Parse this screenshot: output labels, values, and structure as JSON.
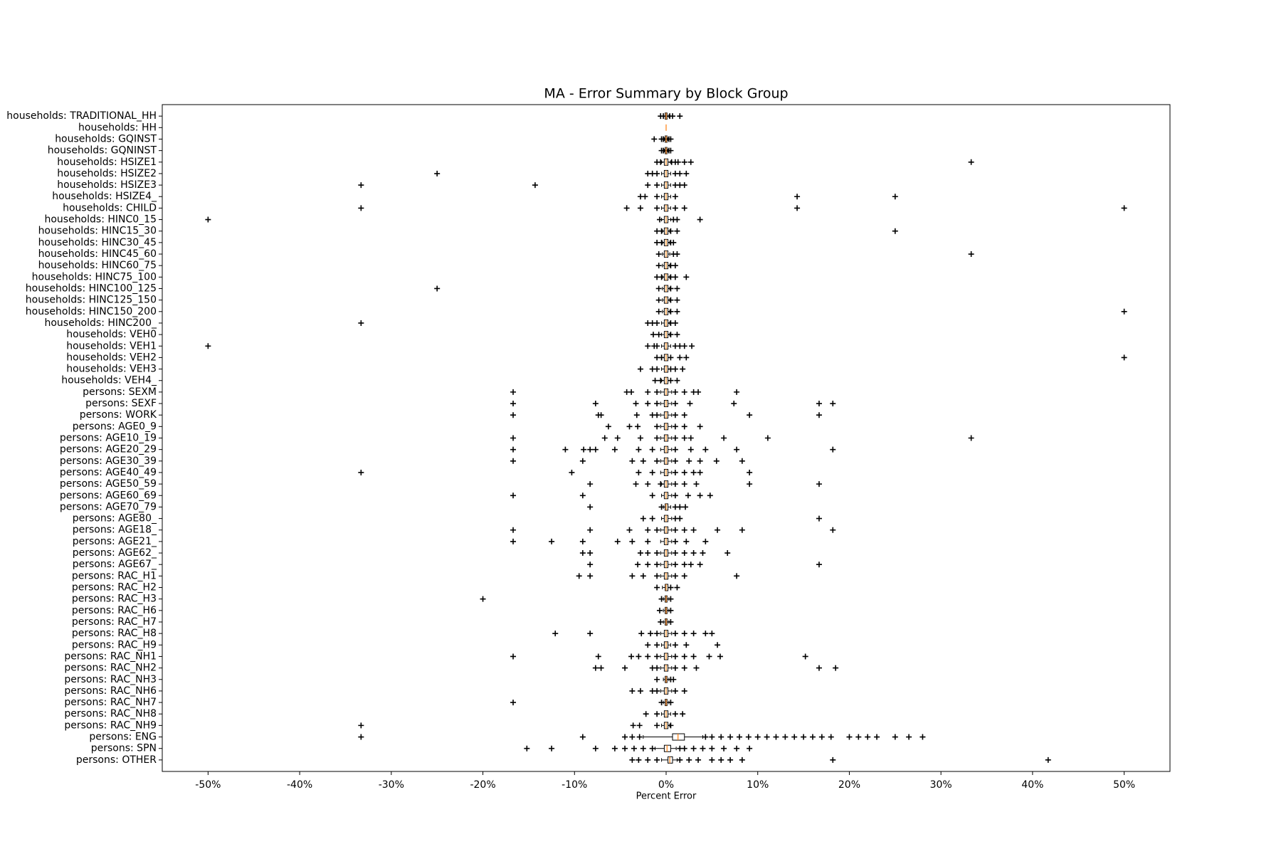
{
  "chart_data": {
    "type": "boxplot",
    "orientation": "horizontal",
    "title": "MA - Error Summary by Block Group",
    "x_label": "Percent Error",
    "xlim": [
      -55,
      55
    ],
    "xticks": [
      {
        "value": -50,
        "label": "-50%"
      },
      {
        "value": -40,
        "label": "-40%"
      },
      {
        "value": -30,
        "label": "-30%"
      },
      {
        "value": -20,
        "label": "-20%"
      },
      {
        "value": -10,
        "label": "-10%"
      },
      {
        "value": 0,
        "label": "0%"
      },
      {
        "value": 10,
        "label": "10%"
      },
      {
        "value": 20,
        "label": "20%"
      },
      {
        "value": 30,
        "label": "30%"
      },
      {
        "value": 40,
        "label": "40%"
      },
      {
        "value": 50,
        "label": "50%"
      }
    ],
    "box_color": "#000000",
    "median_color": "#ff7f0e",
    "grid": false,
    "categories": [
      "households: TRADITIONAL_HH",
      "households: HH",
      "households: GQINST",
      "households: GQNINST",
      "households: HSIZE1",
      "households: HSIZE2",
      "households: HSIZE3",
      "households: HSIZE4_",
      "households: CHILD",
      "households: HINC0_15",
      "households: HINC15_30",
      "households: HINC30_45",
      "households: HINC45_60",
      "households: HINC60_75",
      "households: HINC75_100",
      "households: HINC100_125",
      "households: HINC125_150",
      "households: HINC150_200",
      "households: HINC200_",
      "households: VEH0",
      "households: VEH1",
      "households: VEH2",
      "households: VEH3",
      "households: VEH4_",
      "persons: SEXM",
      "persons: SEXF",
      "persons: WORK",
      "persons: AGE0_9",
      "persons: AGE10_19",
      "persons: AGE20_29",
      "persons: AGE30_39",
      "persons: AGE40_49",
      "persons: AGE50_59",
      "persons: AGE60_69",
      "persons: AGE70_79",
      "persons: AGE80_",
      "persons: AGE18_",
      "persons: AGE21_",
      "persons: AGE62_",
      "persons: AGE67_",
      "persons: RAC_H1",
      "persons: RAC_H2",
      "persons: RAC_H3",
      "persons: RAC_H6",
      "persons: RAC_H7",
      "persons: RAC_H8",
      "persons: RAC_H9",
      "persons: RAC_NH1",
      "persons: RAC_NH2",
      "persons: RAC_NH3",
      "persons: RAC_NH6",
      "persons: RAC_NH7",
      "persons: RAC_NH8",
      "persons: RAC_NH9",
      "persons: ENG",
      "persons: SPN",
      "persons: OTHER"
    ],
    "boxes": [
      {
        "q1": -0.1,
        "median": 0,
        "q3": 0.1,
        "whislo": -0.3,
        "whishi": 0.3,
        "fliers": [
          -0.6,
          -0.3,
          0.4,
          0.7,
          1.5
        ]
      },
      {
        "q1": 0,
        "median": 0,
        "q3": 0,
        "whislo": 0,
        "whishi": 0,
        "fliers": []
      },
      {
        "q1": -0.1,
        "median": 0,
        "q3": 0.1,
        "whislo": -0.2,
        "whishi": 0.2,
        "fliers": [
          -1.3,
          -0.5,
          -0.3,
          0.3,
          0.5
        ]
      },
      {
        "q1": -0.1,
        "median": 0,
        "q3": 0.1,
        "whislo": -0.2,
        "whishi": 0.2,
        "fliers": [
          -0.5,
          -0.3,
          0.3,
          0.5
        ]
      },
      {
        "q1": -0.2,
        "median": 0,
        "q3": 0.2,
        "whislo": -0.5,
        "whishi": 0.5,
        "fliers": [
          -1,
          -0.6,
          0.6,
          1,
          1.3,
          2,
          2.7,
          33.3
        ]
      },
      {
        "q1": -0.2,
        "median": 0,
        "q3": 0.2,
        "whislo": -0.5,
        "whishi": 0.5,
        "fliers": [
          -25,
          -2,
          -1.5,
          -1,
          1,
          1.5,
          2.2
        ]
      },
      {
        "q1": -0.2,
        "median": 0,
        "q3": 0.2,
        "whislo": -0.5,
        "whishi": 0.5,
        "fliers": [
          -33.3,
          -14.3,
          -2,
          -1,
          1,
          1.5,
          2
        ]
      },
      {
        "q1": -0.2,
        "median": 0,
        "q3": 0.2,
        "whislo": -0.5,
        "whishi": 0.5,
        "fliers": [
          -2.8,
          -2.3,
          -1,
          1,
          14.3,
          25
        ]
      },
      {
        "q1": -0.2,
        "median": 0,
        "q3": 0.2,
        "whislo": -0.5,
        "whishi": 0.5,
        "fliers": [
          -33.3,
          -4.3,
          -2.8,
          -1,
          1,
          2,
          14.3,
          50
        ]
      },
      {
        "q1": -0.2,
        "median": 0,
        "q3": 0.2,
        "whislo": -0.5,
        "whishi": 0.5,
        "fliers": [
          -50,
          -0.7,
          0.8,
          1.2,
          3.7
        ]
      },
      {
        "q1": -0.2,
        "median": 0,
        "q3": 0.2,
        "whislo": -0.4,
        "whishi": 0.4,
        "fliers": [
          -1,
          -0.5,
          0.5,
          1.2,
          25
        ]
      },
      {
        "q1": -0.2,
        "median": 0,
        "q3": 0.2,
        "whislo": -0.4,
        "whishi": 0.4,
        "fliers": [
          -1,
          -0.5,
          0.5,
          0.8
        ]
      },
      {
        "q1": -0.2,
        "median": 0,
        "q3": 0.2,
        "whislo": -0.4,
        "whishi": 0.4,
        "fliers": [
          -0.8,
          0.8,
          1.2,
          33.3
        ]
      },
      {
        "q1": -0.2,
        "median": 0,
        "q3": 0.2,
        "whislo": -0.4,
        "whishi": 0.4,
        "fliers": [
          -0.8,
          0.5,
          1
        ]
      },
      {
        "q1": -0.2,
        "median": 0,
        "q3": 0.2,
        "whislo": -0.4,
        "whishi": 0.4,
        "fliers": [
          -1,
          -0.5,
          0.5,
          1,
          2.2
        ]
      },
      {
        "q1": -0.2,
        "median": 0,
        "q3": 0.2,
        "whislo": -0.4,
        "whishi": 0.4,
        "fliers": [
          -25,
          -0.8,
          0.5,
          1.2
        ]
      },
      {
        "q1": -0.2,
        "median": 0,
        "q3": 0.2,
        "whislo": -0.4,
        "whishi": 0.4,
        "fliers": [
          -0.8,
          0.5,
          1.2
        ]
      },
      {
        "q1": -0.2,
        "median": 0,
        "q3": 0.2,
        "whislo": -0.4,
        "whishi": 0.4,
        "fliers": [
          -0.8,
          0.5,
          1.2,
          50
        ]
      },
      {
        "q1": -0.2,
        "median": 0,
        "q3": 0.2,
        "whislo": -0.5,
        "whishi": 0.4,
        "fliers": [
          -33.3,
          -2,
          -1.5,
          -1,
          0.5,
          1
        ]
      },
      {
        "q1": -0.2,
        "median": 0,
        "q3": 0.2,
        "whislo": -0.5,
        "whishi": 0.4,
        "fliers": [
          -1.4,
          -0.8,
          0.5,
          1.2
        ]
      },
      {
        "q1": -0.2,
        "median": 0,
        "q3": 0.2,
        "whislo": -0.5,
        "whishi": 0.5,
        "fliers": [
          -50,
          -2,
          -1.3,
          -1,
          1,
          1.5,
          2,
          2.8
        ]
      },
      {
        "q1": -0.2,
        "median": 0,
        "q3": 0.2,
        "whislo": -0.5,
        "whishi": 0.5,
        "fliers": [
          -1,
          -0.5,
          0.5,
          1.5,
          2.2,
          50
        ]
      },
      {
        "q1": -0.2,
        "median": 0,
        "q3": 0.2,
        "whislo": -0.5,
        "whishi": 0.5,
        "fliers": [
          -2.8,
          -1.5,
          -1,
          0.5,
          1,
          1.8
        ]
      },
      {
        "q1": -0.2,
        "median": 0,
        "q3": 0.2,
        "whislo": -0.5,
        "whishi": 0.5,
        "fliers": [
          -1.2,
          -0.6,
          0.5,
          1.2
        ]
      },
      {
        "q1": -0.2,
        "median": 0,
        "q3": 0.2,
        "whislo": -0.6,
        "whishi": 0.6,
        "fliers": [
          -16.7,
          -4.3,
          -3.8,
          -2,
          -1,
          1,
          2,
          3,
          3.5,
          7.7
        ]
      },
      {
        "q1": -0.2,
        "median": 0,
        "q3": 0.2,
        "whislo": -0.6,
        "whishi": 0.6,
        "fliers": [
          -16.7,
          -7.7,
          -3.3,
          -2,
          -1,
          1,
          2.6,
          7.4,
          16.7,
          18.2
        ]
      },
      {
        "q1": -0.2,
        "median": 0,
        "q3": 0.2,
        "whislo": -0.6,
        "whishi": 0.6,
        "fliers": [
          -16.7,
          -7.4,
          -7.1,
          -3.2,
          -1.5,
          -1,
          1,
          2,
          9.1,
          16.7
        ]
      },
      {
        "q1": -0.2,
        "median": 0,
        "q3": 0.2,
        "whislo": -0.6,
        "whishi": 0.6,
        "fliers": [
          -6.3,
          -4,
          -3.1,
          -1,
          1,
          2,
          3.7
        ]
      },
      {
        "q1": -0.2,
        "median": 0,
        "q3": 0.2,
        "whislo": -0.6,
        "whishi": 0.6,
        "fliers": [
          -16.7,
          -6.7,
          -5.3,
          -2.8,
          -1,
          1,
          2,
          2.7,
          6.3,
          11.1,
          33.3
        ]
      },
      {
        "q1": -0.2,
        "median": 0,
        "q3": 0.2,
        "whislo": -0.6,
        "whishi": 0.6,
        "fliers": [
          -16.7,
          -11,
          -9,
          -8.3,
          -7.7,
          -5.6,
          -3,
          -1.5,
          1,
          2.7,
          4.3,
          7.7,
          18.2
        ]
      },
      {
        "q1": -0.2,
        "median": 0,
        "q3": 0.2,
        "whislo": -0.6,
        "whishi": 0.6,
        "fliers": [
          -16.7,
          -9.1,
          -3.7,
          -2.5,
          -1,
          1,
          2.5,
          3.7,
          5.5,
          8.3
        ]
      },
      {
        "q1": -0.2,
        "median": 0,
        "q3": 0.2,
        "whislo": -0.6,
        "whishi": 0.6,
        "fliers": [
          -33.3,
          -10.3,
          -3,
          -1.5,
          1,
          2,
          3,
          3.7,
          9.1
        ]
      },
      {
        "q1": -0.2,
        "median": 0,
        "q3": 0.2,
        "whislo": -0.5,
        "whishi": 0.6,
        "fliers": [
          -8.3,
          -3.3,
          -2,
          -0.6,
          1,
          2,
          3.3,
          9.1,
          16.7
        ]
      },
      {
        "q1": -0.2,
        "median": 0,
        "q3": 0.2,
        "whislo": -0.5,
        "whishi": 0.6,
        "fliers": [
          -16.7,
          -9.1,
          -1.5,
          1,
          2.4,
          3.7,
          4.8
        ]
      },
      {
        "q1": -0.1,
        "median": 0,
        "q3": 0.2,
        "whislo": -0.3,
        "whishi": 0.5,
        "fliers": [
          -8.3,
          -0.5,
          1,
          1.5,
          2.1
        ]
      },
      {
        "q1": -0.2,
        "median": 0,
        "q3": 0.2,
        "whislo": -0.5,
        "whishi": 0.6,
        "fliers": [
          -2.5,
          -1.5,
          1,
          1.5,
          16.7
        ]
      },
      {
        "q1": -0.2,
        "median": 0,
        "q3": 0.2,
        "whislo": -0.6,
        "whishi": 0.6,
        "fliers": [
          -16.7,
          -8.3,
          -4,
          -2,
          -1,
          1,
          2,
          3,
          5.6,
          8.3,
          18.2
        ]
      },
      {
        "q1": -0.2,
        "median": 0,
        "q3": 0.2,
        "whislo": -0.6,
        "whishi": 0.6,
        "fliers": [
          -16.7,
          -12.5,
          -9.1,
          -5.3,
          -3.7,
          -2,
          1,
          2.2,
          4.3
        ]
      },
      {
        "q1": -0.2,
        "median": 0,
        "q3": 0.2,
        "whislo": -0.6,
        "whishi": 0.6,
        "fliers": [
          -9.1,
          -8.3,
          -2.8,
          -2,
          -1,
          1,
          2,
          3,
          4,
          6.7
        ]
      },
      {
        "q1": -0.2,
        "median": 0,
        "q3": 0.2,
        "whislo": -0.6,
        "whishi": 0.6,
        "fliers": [
          -8.3,
          -3.1,
          -2,
          -1,
          1,
          2,
          2.7,
          3.7,
          16.7
        ]
      },
      {
        "q1": -0.2,
        "median": 0,
        "q3": 0.2,
        "whislo": -0.6,
        "whishi": 0.6,
        "fliers": [
          -9.5,
          -8.3,
          -3.7,
          -2.5,
          -1,
          1,
          2,
          7.7
        ]
      },
      {
        "q1": -0.1,
        "median": 0,
        "q3": 0.2,
        "whislo": -0.4,
        "whishi": 0.5,
        "fliers": [
          -1,
          0.5,
          1.2
        ]
      },
      {
        "q1": -0.1,
        "median": 0,
        "q3": 0.1,
        "whislo": -0.3,
        "whishi": 0.3,
        "fliers": [
          -20,
          -0.5,
          0.5
        ]
      },
      {
        "q1": -0.1,
        "median": 0,
        "q3": 0.1,
        "whislo": -0.3,
        "whishi": 0.3,
        "fliers": [
          -0.7,
          0.5
        ]
      },
      {
        "q1": -0.1,
        "median": 0,
        "q3": 0.1,
        "whislo": -0.3,
        "whishi": 0.3,
        "fliers": [
          -0.6,
          0.5
        ]
      },
      {
        "q1": -0.2,
        "median": 0,
        "q3": 0.2,
        "whislo": -0.6,
        "whishi": 0.6,
        "fliers": [
          -12.1,
          -8.3,
          -2.7,
          -1.7,
          -1,
          1,
          2,
          3,
          4.3,
          5
        ]
      },
      {
        "q1": -0.2,
        "median": 0,
        "q3": 0.2,
        "whislo": -0.5,
        "whishi": 0.5,
        "fliers": [
          -2,
          -1,
          1,
          2.2,
          5.6
        ]
      },
      {
        "q1": -0.2,
        "median": 0,
        "q3": 0.2,
        "whislo": -0.6,
        "whishi": 0.6,
        "fliers": [
          -16.7,
          -7.4,
          -3.8,
          -3,
          -2,
          -1,
          1,
          2,
          3,
          4.7,
          5.9,
          15.2
        ]
      },
      {
        "q1": -0.2,
        "median": 0,
        "q3": 0.2,
        "whislo": -0.6,
        "whishi": 0.6,
        "fliers": [
          -7.7,
          -7.1,
          -4.5,
          -1.5,
          -1,
          1,
          2,
          3.3,
          16.7,
          18.5
        ]
      },
      {
        "q1": -0.1,
        "median": 0,
        "q3": 0.1,
        "whislo": -0.3,
        "whishi": 0.3,
        "fliers": [
          -1,
          0.5,
          0.8
        ]
      },
      {
        "q1": -0.2,
        "median": 0,
        "q3": 0.2,
        "whislo": -0.6,
        "whishi": 0.6,
        "fliers": [
          -3.7,
          -2.8,
          -1.5,
          -1,
          1,
          2
        ]
      },
      {
        "q1": -0.1,
        "median": 0,
        "q3": 0.1,
        "whislo": -0.3,
        "whishi": 0.3,
        "fliers": [
          -16.7,
          -0.5,
          0.5
        ]
      },
      {
        "q1": -0.2,
        "median": 0,
        "q3": 0.2,
        "whislo": -0.5,
        "whishi": 0.5,
        "fliers": [
          -2.2,
          -1,
          1,
          1.8
        ]
      },
      {
        "q1": -0.2,
        "median": 0,
        "q3": 0.2,
        "whislo": -0.5,
        "whishi": 0.4,
        "fliers": [
          -33.3,
          -3.6,
          -2.9,
          -1,
          0.5
        ]
      },
      {
        "q1": 0.7,
        "median": 1.3,
        "q3": 2,
        "whislo": -2.5,
        "whishi": 4,
        "fliers": [
          -33.3,
          -9.1,
          -4.5,
          -3.7,
          -2.9,
          4.3,
          5,
          6,
          7,
          8,
          9,
          10,
          11,
          12,
          13,
          14,
          15,
          16,
          17,
          18,
          20,
          21,
          22,
          23,
          25,
          26.5,
          28
        ]
      },
      {
        "q1": -0.2,
        "median": 0.1,
        "q3": 0.5,
        "whislo": -1.2,
        "whishi": 1.1,
        "fliers": [
          -15.2,
          -12.5,
          -7.7,
          -5.6,
          -4.5,
          -3.5,
          -2.5,
          -1.5,
          1.5,
          2,
          3,
          4,
          5,
          6.3,
          7.7,
          9.1
        ]
      },
      {
        "q1": 0.2,
        "median": 0.4,
        "q3": 0.7,
        "whislo": -0.5,
        "whishi": 1.2,
        "fliers": [
          -3.7,
          -3,
          -2,
          -1,
          1.5,
          2.5,
          3.5,
          5,
          6,
          7,
          8.3,
          18.2,
          41.7
        ]
      }
    ]
  }
}
